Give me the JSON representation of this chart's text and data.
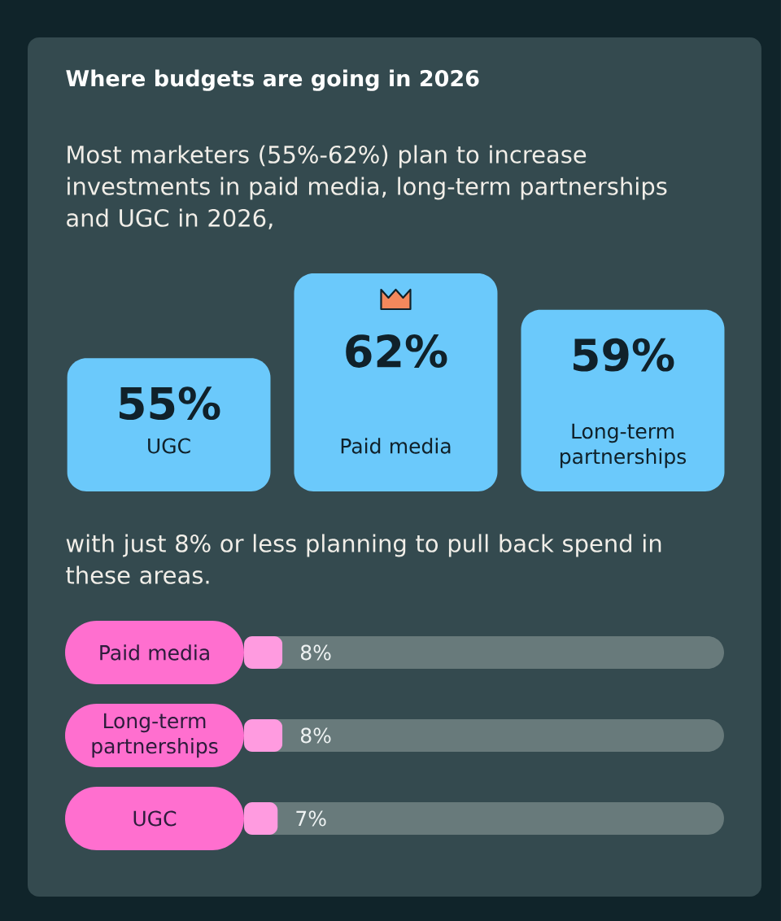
{
  "chart_data": [
    {
      "type": "bar",
      "title": "Where budgets are going in 2026",
      "subtitle": "Most marketers (55%-62%) plan to increase investments in paid media, long-term partnerships and UGC in 2026,",
      "categories": [
        "UGC",
        "Paid media",
        "Long-term partnerships"
      ],
      "values": [
        55,
        62,
        59
      ],
      "value_labels": [
        "55%",
        "62%",
        "59%"
      ],
      "color": "#6bc9fb",
      "ylim": [
        44,
        62
      ],
      "tick_labels": "x"
    },
    {
      "type": "bar",
      "orientation": "horizontal",
      "subtitle": "with just 8% or less planning to pull back spend in these areas.",
      "categories": [
        "Paid media",
        "Long-term partnerships",
        "UGC"
      ],
      "values": [
        8,
        8,
        7
      ],
      "value_labels": [
        "8%",
        "8%",
        "7%"
      ],
      "color": "#ff9be0",
      "xlim": [
        0,
        100
      ],
      "tick_labels": "y"
    }
  ]
}
